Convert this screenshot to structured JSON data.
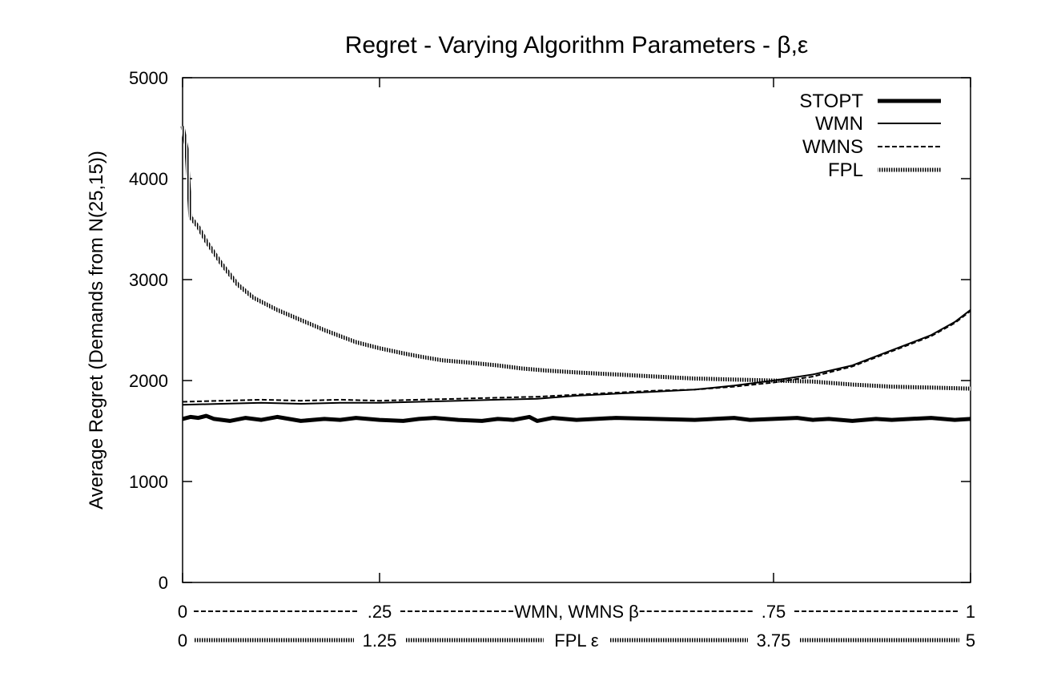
{
  "chart_data": {
    "type": "line",
    "title": "Regret - Varying Algorithm Parameters - β,ε",
    "ylabel": "Average Regret (Demands from N(25,15))",
    "ylim": [
      0,
      5000
    ],
    "yticks": [
      "0",
      "1000",
      "2000",
      "3000",
      "4000",
      "5000"
    ],
    "xlim": [
      0,
      1
    ],
    "x_axes": [
      {
        "label": "WMN, WMNS β",
        "ticks": [
          "0",
          ".25",
          ".75",
          "1"
        ],
        "tick_values": [
          0,
          0.25,
          0.75,
          1
        ],
        "line_color": "#000000"
      },
      {
        "label": "FPL ε",
        "ticks": [
          "0",
          "1.25",
          "3.75",
          "5"
        ],
        "tick_values": [
          0,
          0.25,
          0.75,
          1
        ],
        "line_color": "#000000"
      }
    ],
    "legend_position": "top-right",
    "grid": false,
    "series": [
      {
        "name": "STOPT",
        "x": [
          0,
          0.01,
          0.02,
          0.03,
          0.04,
          0.06,
          0.08,
          0.1,
          0.12,
          0.15,
          0.18,
          0.2,
          0.22,
          0.25,
          0.28,
          0.3,
          0.32,
          0.35,
          0.38,
          0.4,
          0.42,
          0.44,
          0.45,
          0.47,
          0.5,
          0.55,
          0.6,
          0.65,
          0.7,
          0.72,
          0.75,
          0.78,
          0.8,
          0.82,
          0.85,
          0.88,
          0.9,
          0.95,
          0.98,
          1
        ],
        "y": [
          1620,
          1640,
          1630,
          1650,
          1620,
          1600,
          1630,
          1610,
          1640,
          1600,
          1620,
          1610,
          1630,
          1610,
          1600,
          1620,
          1630,
          1610,
          1600,
          1620,
          1610,
          1640,
          1600,
          1630,
          1610,
          1630,
          1620,
          1610,
          1630,
          1610,
          1620,
          1630,
          1610,
          1620,
          1600,
          1620,
          1610,
          1630,
          1610,
          1620
        ]
      },
      {
        "name": "WMN",
        "x": [
          0,
          0.05,
          0.1,
          0.15,
          0.2,
          0.25,
          0.3,
          0.35,
          0.4,
          0.45,
          0.5,
          0.55,
          0.6,
          0.65,
          0.7,
          0.75,
          0.8,
          0.85,
          0.9,
          0.95,
          0.98,
          1
        ],
        "y": [
          1760,
          1770,
          1780,
          1770,
          1780,
          1780,
          1790,
          1800,
          1810,
          1820,
          1850,
          1870,
          1890,
          1910,
          1950,
          2000,
          2060,
          2150,
          2300,
          2450,
          2580,
          2700
        ]
      },
      {
        "name": "WMNS",
        "x": [
          0,
          0.05,
          0.1,
          0.15,
          0.2,
          0.25,
          0.3,
          0.35,
          0.4,
          0.45,
          0.5,
          0.55,
          0.6,
          0.65,
          0.7,
          0.75,
          0.8,
          0.85,
          0.9,
          0.95,
          0.98,
          1
        ],
        "y": [
          1790,
          1800,
          1810,
          1800,
          1810,
          1800,
          1810,
          1820,
          1830,
          1840,
          1860,
          1880,
          1900,
          1910,
          1940,
          1980,
          2040,
          2140,
          2290,
          2440,
          2570,
          2690
        ]
      },
      {
        "name": "FPL",
        "x": [
          0,
          0.005,
          0.01,
          0.02,
          0.03,
          0.05,
          0.07,
          0.09,
          0.12,
          0.15,
          0.18,
          0.2,
          0.22,
          0.25,
          0.28,
          0.3,
          0.33,
          0.36,
          0.4,
          0.43,
          0.46,
          0.5,
          0.55,
          0.6,
          0.65,
          0.7,
          0.75,
          0.8,
          0.85,
          0.9,
          0.95,
          1
        ],
        "y": [
          4520,
          4300,
          3620,
          3520,
          3380,
          3150,
          2950,
          2820,
          2700,
          2600,
          2500,
          2440,
          2380,
          2320,
          2270,
          2240,
          2200,
          2180,
          2150,
          2120,
          2100,
          2080,
          2060,
          2040,
          2020,
          2010,
          2000,
          1990,
          1960,
          1940,
          1930,
          1920
        ]
      }
    ]
  }
}
